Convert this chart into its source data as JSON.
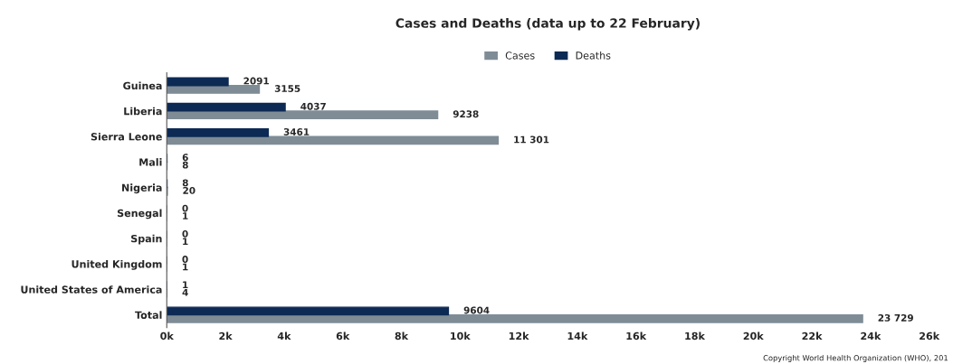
{
  "chart_data": {
    "type": "bar",
    "orientation": "horizontal",
    "title": "Cases and Deaths (data up to 22 February)",
    "categories": [
      "Guinea",
      "Liberia",
      "Sierra Leone",
      "Mali",
      "Nigeria",
      "Senegal",
      "Spain",
      "United Kingdom",
      "United States of America",
      "Total"
    ],
    "series": [
      {
        "name": "Cases",
        "color": "#7f8c96",
        "values": [
          3155,
          9238,
          11301,
          8,
          20,
          1,
          1,
          1,
          4,
          23729
        ],
        "value_labels": [
          "3155",
          "9238",
          "11 301",
          "8",
          "20",
          "1",
          "1",
          "1",
          "4",
          "23 729"
        ]
      },
      {
        "name": "Deaths",
        "color": "#0d2a55",
        "values": [
          2091,
          4037,
          3461,
          6,
          8,
          0,
          0,
          0,
          1,
          9604
        ],
        "value_labels": [
          "2091",
          "4037",
          "3461",
          "6",
          "8",
          "0",
          "0",
          "0",
          "1",
          "9604"
        ]
      }
    ],
    "xlim": [
      0,
      26000
    ],
    "xticks": [
      {
        "value": 0,
        "label": "0k"
      },
      {
        "value": 2000,
        "label": "2k"
      },
      {
        "value": 4000,
        "label": "4k"
      },
      {
        "value": 6000,
        "label": "6k"
      },
      {
        "value": 8000,
        "label": "8k"
      },
      {
        "value": 10000,
        "label": "10k"
      },
      {
        "value": 12000,
        "label": "12k"
      },
      {
        "value": 14000,
        "label": "14k"
      },
      {
        "value": 16000,
        "label": "16k"
      },
      {
        "value": 18000,
        "label": "18k"
      },
      {
        "value": 20000,
        "label": "20k"
      },
      {
        "value": 22000,
        "label": "22k"
      },
      {
        "value": 24000,
        "label": "24k"
      },
      {
        "value": 26000,
        "label": "26k"
      }
    ],
    "legend": "top",
    "grid": false,
    "annotations": [
      "Copyright World Health Organization (WHO), 201"
    ]
  }
}
